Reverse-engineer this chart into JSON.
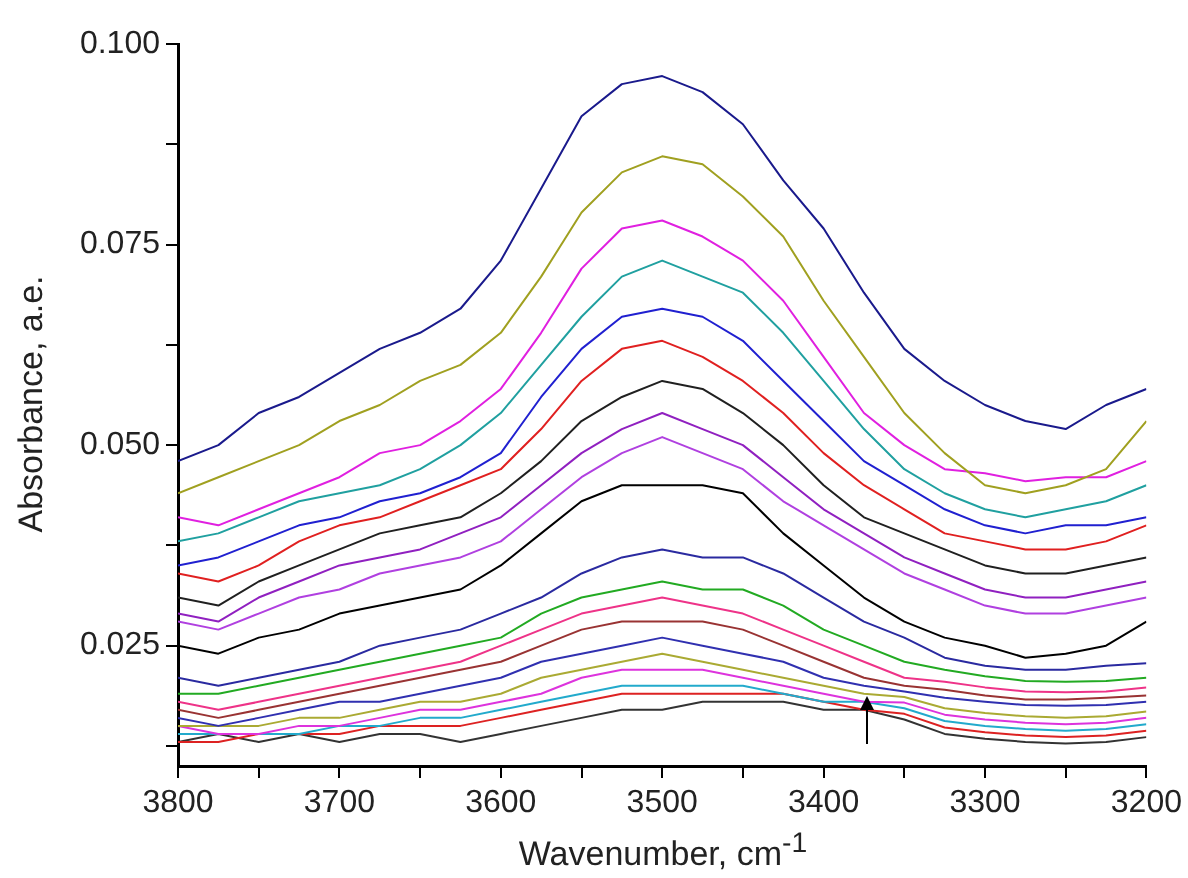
{
  "chart_data": {
    "type": "line",
    "xlabel": "Wavenumber, cm$^{-1}$",
    "ylabel": "Absorbance, a.e.",
    "x": [
      3800,
      3775,
      3750,
      3725,
      3700,
      3675,
      3650,
      3625,
      3600,
      3575,
      3550,
      3525,
      3500,
      3475,
      3450,
      3425,
      3400,
      3375,
      3350,
      3325,
      3300,
      3275,
      3250,
      3225,
      3200
    ],
    "xlim": [
      3800,
      3200
    ],
    "xticks": [
      3800,
      {
        "value": 3750,
        "label": null
      },
      3700,
      {
        "value": 3650,
        "label": null
      },
      3600,
      {
        "value": 3550,
        "label": null
      },
      3500,
      {
        "value": 3450,
        "label": null
      },
      3400,
      {
        "value": 3350,
        "label": null
      },
      3300,
      {
        "value": 3250,
        "label": null
      },
      3200
    ],
    "ylim": [
      0.01,
      0.1
    ],
    "yticks": [
      {
        "value": 0.0125,
        "label": null
      },
      {
        "value": 0.025,
        "label": "0.025"
      },
      {
        "value": 0.0375,
        "label": null
      },
      {
        "value": 0.05,
        "label": "0.050"
      },
      {
        "value": 0.0625,
        "label": null
      },
      {
        "value": 0.075,
        "label": "0.075"
      },
      {
        "value": 0.0875,
        "label": null
      },
      {
        "value": 0.1,
        "label": "0.100"
      }
    ],
    "grid": false,
    "legend": false,
    "marker": "none",
    "line_style": "solid",
    "series": [
      {
        "color": "#1a1a8c",
        "values": [
          0.048,
          0.05,
          0.054,
          0.056,
          0.059,
          0.062,
          0.064,
          0.067,
          0.073,
          0.082,
          0.091,
          0.095,
          0.096,
          0.094,
          0.09,
          0.083,
          0.077,
          0.069,
          0.062,
          0.058,
          0.055,
          0.053,
          0.052,
          0.055,
          0.057
        ]
      },
      {
        "color": "#a0a020",
        "values": [
          0.044,
          0.046,
          0.048,
          0.05,
          0.053,
          0.055,
          0.058,
          0.06,
          0.064,
          0.071,
          0.079,
          0.084,
          0.086,
          0.085,
          0.081,
          0.076,
          0.068,
          0.061,
          0.054,
          0.049,
          0.045,
          0.044,
          0.045,
          0.047,
          0.053
        ]
      },
      {
        "color": "#e020e0",
        "values": [
          0.041,
          0.04,
          0.042,
          0.044,
          0.046,
          0.049,
          0.05,
          0.053,
          0.057,
          0.064,
          0.072,
          0.077,
          0.078,
          0.076,
          0.073,
          0.068,
          0.061,
          0.054,
          0.05,
          0.047,
          0.0465,
          0.0455,
          0.046,
          0.046,
          0.048
        ]
      },
      {
        "color": "#20a0a0",
        "values": [
          0.038,
          0.039,
          0.041,
          0.043,
          0.044,
          0.045,
          0.047,
          0.05,
          0.054,
          0.06,
          0.066,
          0.071,
          0.073,
          0.071,
          0.069,
          0.064,
          0.058,
          0.052,
          0.047,
          0.044,
          0.042,
          0.041,
          0.042,
          0.043,
          0.045
        ]
      },
      {
        "color": "#2020d0",
        "values": [
          0.035,
          0.036,
          0.038,
          0.04,
          0.041,
          0.043,
          0.044,
          0.046,
          0.049,
          0.056,
          0.062,
          0.066,
          0.067,
          0.066,
          0.063,
          0.058,
          0.053,
          0.048,
          0.045,
          0.042,
          0.04,
          0.039,
          0.04,
          0.04,
          0.041
        ]
      },
      {
        "color": "#e02020",
        "values": [
          0.034,
          0.033,
          0.035,
          0.038,
          0.04,
          0.041,
          0.043,
          0.045,
          0.047,
          0.052,
          0.058,
          0.062,
          0.063,
          0.061,
          0.058,
          0.054,
          0.049,
          0.045,
          0.042,
          0.039,
          0.038,
          0.037,
          0.037,
          0.038,
          0.04
        ]
      },
      {
        "color": "#202020",
        "values": [
          0.031,
          0.03,
          0.033,
          0.035,
          0.037,
          0.039,
          0.04,
          0.041,
          0.044,
          0.048,
          0.053,
          0.056,
          0.058,
          0.057,
          0.054,
          0.05,
          0.045,
          0.041,
          0.039,
          0.037,
          0.035,
          0.034,
          0.034,
          0.035,
          0.036
        ]
      },
      {
        "color": "#9020c0",
        "values": [
          0.029,
          0.028,
          0.031,
          0.033,
          0.035,
          0.036,
          0.037,
          0.039,
          0.041,
          0.045,
          0.049,
          0.052,
          0.054,
          0.052,
          0.05,
          0.046,
          0.042,
          0.039,
          0.036,
          0.034,
          0.032,
          0.031,
          0.031,
          0.032,
          0.033
        ]
      },
      {
        "color": "#b040e0",
        "values": [
          0.028,
          0.027,
          0.029,
          0.031,
          0.032,
          0.034,
          0.035,
          0.036,
          0.038,
          0.042,
          0.046,
          0.049,
          0.051,
          0.049,
          0.047,
          0.043,
          0.04,
          0.037,
          0.034,
          0.032,
          0.03,
          0.029,
          0.029,
          0.03,
          0.031
        ]
      },
      {
        "color": "#000000",
        "values": [
          0.025,
          0.024,
          0.026,
          0.027,
          0.029,
          0.03,
          0.031,
          0.032,
          0.035,
          0.039,
          0.043,
          0.045,
          0.045,
          0.045,
          0.044,
          0.039,
          0.035,
          0.031,
          0.028,
          0.026,
          0.025,
          0.0235,
          0.024,
          0.025,
          0.028
        ]
      },
      {
        "color": "#2a2aa0",
        "values": [
          0.021,
          0.02,
          0.021,
          0.022,
          0.023,
          0.025,
          0.026,
          0.027,
          0.029,
          0.031,
          0.034,
          0.036,
          0.037,
          0.036,
          0.036,
          0.034,
          0.031,
          0.028,
          0.026,
          0.0235,
          0.0225,
          0.022,
          0.022,
          0.0225,
          0.0228
        ]
      },
      {
        "color": "#22aa22",
        "values": [
          0.019,
          0.019,
          0.02,
          0.021,
          0.022,
          0.023,
          0.024,
          0.025,
          0.026,
          0.029,
          0.031,
          0.032,
          0.033,
          0.032,
          0.032,
          0.03,
          0.027,
          0.025,
          0.023,
          0.022,
          0.0212,
          0.0206,
          0.0205,
          0.0206,
          0.021
        ]
      },
      {
        "color": "#ee3388",
        "values": [
          0.018,
          0.017,
          0.018,
          0.019,
          0.02,
          0.021,
          0.022,
          0.023,
          0.025,
          0.027,
          0.029,
          0.03,
          0.031,
          0.03,
          0.029,
          0.027,
          0.025,
          0.023,
          0.021,
          0.0205,
          0.0198,
          0.0193,
          0.0192,
          0.0193,
          0.0198
        ]
      },
      {
        "color": "#993333",
        "values": [
          0.017,
          0.016,
          0.017,
          0.018,
          0.019,
          0.02,
          0.021,
          0.022,
          0.023,
          0.025,
          0.027,
          0.028,
          0.028,
          0.028,
          0.027,
          0.025,
          0.023,
          0.021,
          0.02,
          0.0195,
          0.0188,
          0.0183,
          0.0183,
          0.0185,
          0.0188
        ]
      },
      {
        "color": "#3030b0",
        "values": [
          0.016,
          0.015,
          0.016,
          0.017,
          0.018,
          0.018,
          0.019,
          0.02,
          0.021,
          0.023,
          0.024,
          0.025,
          0.026,
          0.025,
          0.024,
          0.023,
          0.021,
          0.02,
          0.0193,
          0.0185,
          0.018,
          0.0176,
          0.0175,
          0.0176,
          0.018
        ]
      },
      {
        "color": "#aaaa33",
        "values": [
          0.015,
          0.015,
          0.015,
          0.016,
          0.016,
          0.017,
          0.018,
          0.018,
          0.019,
          0.021,
          0.022,
          0.023,
          0.024,
          0.023,
          0.022,
          0.021,
          0.02,
          0.019,
          0.0186,
          0.0172,
          0.0166,
          0.0162,
          0.016,
          0.0162,
          0.0168
        ]
      },
      {
        "color": "#dd33dd",
        "values": [
          0.015,
          0.014,
          0.014,
          0.015,
          0.015,
          0.016,
          0.017,
          0.017,
          0.018,
          0.019,
          0.021,
          0.022,
          0.022,
          0.022,
          0.021,
          0.02,
          0.019,
          0.018,
          0.0179,
          0.0164,
          0.0158,
          0.0154,
          0.0152,
          0.0154,
          0.016
        ]
      },
      {
        "color": "#22aacc",
        "values": [
          0.014,
          0.014,
          0.014,
          0.014,
          0.015,
          0.015,
          0.016,
          0.016,
          0.017,
          0.018,
          0.019,
          0.02,
          0.02,
          0.02,
          0.02,
          0.019,
          0.018,
          0.018,
          0.0172,
          0.0156,
          0.015,
          0.0146,
          0.0144,
          0.0146,
          0.0152
        ]
      },
      {
        "color": "#dd2222",
        "values": [
          0.013,
          0.013,
          0.014,
          0.014,
          0.014,
          0.015,
          0.015,
          0.015,
          0.016,
          0.017,
          0.018,
          0.019,
          0.019,
          0.019,
          0.019,
          0.019,
          0.018,
          0.017,
          0.0165,
          0.0148,
          0.0142,
          0.0138,
          0.0136,
          0.0138,
          0.0144
        ]
      },
      {
        "color": "#333333",
        "values": [
          0.013,
          0.014,
          0.013,
          0.014,
          0.013,
          0.014,
          0.014,
          0.013,
          0.014,
          0.015,
          0.016,
          0.017,
          0.017,
          0.018,
          0.018,
          0.018,
          0.017,
          0.017,
          0.0158,
          0.014,
          0.0134,
          0.013,
          0.0128,
          0.013,
          0.0136
        ]
      }
    ]
  }
}
